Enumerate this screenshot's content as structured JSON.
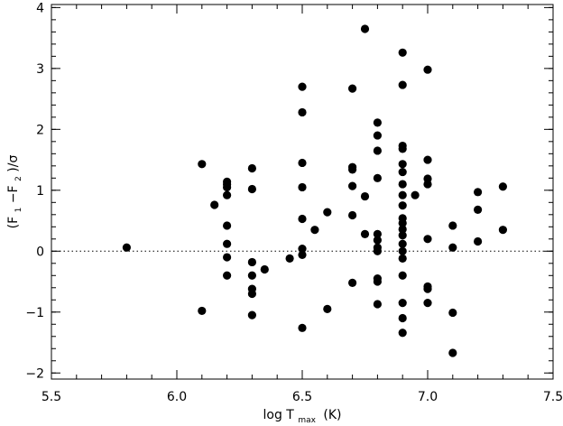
{
  "chart_data": {
    "type": "scatter",
    "title": "",
    "xlabel": {
      "main": "log T",
      "sub": "max",
      "unit": "(K)"
    },
    "ylabel": {
      "open": "(F",
      "sub1": "1",
      "mid": "−F",
      "sub2": "2",
      "close": ")/σ"
    },
    "xlim": [
      5.5,
      7.5
    ],
    "ylim": [
      -2.1,
      4.05
    ],
    "xticks": [
      5.5,
      6.0,
      6.5,
      7.0,
      7.5
    ],
    "xtick_labels": [
      "5.5",
      "6.0",
      "6.5",
      "7.0",
      "7.5"
    ],
    "yticks": [
      -2,
      -1,
      0,
      1,
      2,
      3,
      4
    ],
    "ytick_labels": [
      "−2",
      "−1",
      "0",
      "1",
      "2",
      "3",
      "4"
    ],
    "x_minor_step": 0.1,
    "y_minor_step": 0.2,
    "reference_line": {
      "y": 0,
      "style": "dotted"
    },
    "grid": false,
    "marker_color": "#000000",
    "points": [
      [
        5.8,
        0.06
      ],
      [
        6.1,
        1.43
      ],
      [
        6.1,
        -0.98
      ],
      [
        6.15,
        0.76
      ],
      [
        6.2,
        1.14
      ],
      [
        6.2,
        1.1
      ],
      [
        6.2,
        1.05
      ],
      [
        6.2,
        0.92
      ],
      [
        6.2,
        0.42
      ],
      [
        6.2,
        0.12
      ],
      [
        6.2,
        -0.1
      ],
      [
        6.2,
        -0.4
      ],
      [
        6.3,
        1.36
      ],
      [
        6.3,
        1.02
      ],
      [
        6.3,
        -0.18
      ],
      [
        6.3,
        -0.4
      ],
      [
        6.3,
        -0.62
      ],
      [
        6.3,
        -0.7
      ],
      [
        6.3,
        -1.05
      ],
      [
        6.35,
        -0.3
      ],
      [
        6.45,
        -0.12
      ],
      [
        6.5,
        2.7
      ],
      [
        6.5,
        2.28
      ],
      [
        6.5,
        1.45
      ],
      [
        6.5,
        1.05
      ],
      [
        6.5,
        0.53
      ],
      [
        6.5,
        0.04
      ],
      [
        6.5,
        -0.06
      ],
      [
        6.5,
        -1.26
      ],
      [
        6.55,
        0.35
      ],
      [
        6.6,
        0.64
      ],
      [
        6.6,
        -0.95
      ],
      [
        6.7,
        2.67
      ],
      [
        6.7,
        1.38
      ],
      [
        6.7,
        1.34
      ],
      [
        6.7,
        1.07
      ],
      [
        6.7,
        0.59
      ],
      [
        6.7,
        -0.52
      ],
      [
        6.75,
        3.65
      ],
      [
        6.75,
        0.9
      ],
      [
        6.75,
        0.28
      ],
      [
        6.8,
        2.11
      ],
      [
        6.8,
        1.9
      ],
      [
        6.8,
        1.65
      ],
      [
        6.8,
        1.2
      ],
      [
        6.8,
        0.28
      ],
      [
        6.8,
        0.18
      ],
      [
        6.8,
        0.06
      ],
      [
        6.8,
        0.0
      ],
      [
        6.8,
        -0.45
      ],
      [
        6.8,
        -0.5
      ],
      [
        6.8,
        -0.87
      ],
      [
        6.9,
        3.26
      ],
      [
        6.9,
        2.73
      ],
      [
        6.9,
        1.73
      ],
      [
        6.9,
        1.68
      ],
      [
        6.9,
        1.43
      ],
      [
        6.9,
        1.3
      ],
      [
        6.9,
        1.1
      ],
      [
        6.9,
        0.92
      ],
      [
        6.9,
        0.75
      ],
      [
        6.9,
        0.54
      ],
      [
        6.9,
        0.46
      ],
      [
        6.9,
        0.36
      ],
      [
        6.9,
        0.26
      ],
      [
        6.9,
        0.12
      ],
      [
        6.9,
        0.0
      ],
      [
        6.9,
        -0.12
      ],
      [
        6.9,
        -0.4
      ],
      [
        6.9,
        -0.85
      ],
      [
        6.9,
        -1.1
      ],
      [
        6.9,
        -1.34
      ],
      [
        6.95,
        0.92
      ],
      [
        7.0,
        2.98
      ],
      [
        7.0,
        1.5
      ],
      [
        7.0,
        1.19
      ],
      [
        7.0,
        1.1
      ],
      [
        7.0,
        0.2
      ],
      [
        7.0,
        -0.58
      ],
      [
        7.0,
        -0.62
      ],
      [
        7.0,
        -0.85
      ],
      [
        7.1,
        0.42
      ],
      [
        7.1,
        0.06
      ],
      [
        7.1,
        -1.01
      ],
      [
        7.1,
        -1.67
      ],
      [
        7.2,
        0.97
      ],
      [
        7.2,
        0.68
      ],
      [
        7.2,
        0.16
      ],
      [
        7.3,
        1.06
      ],
      [
        7.3,
        0.35
      ]
    ]
  }
}
